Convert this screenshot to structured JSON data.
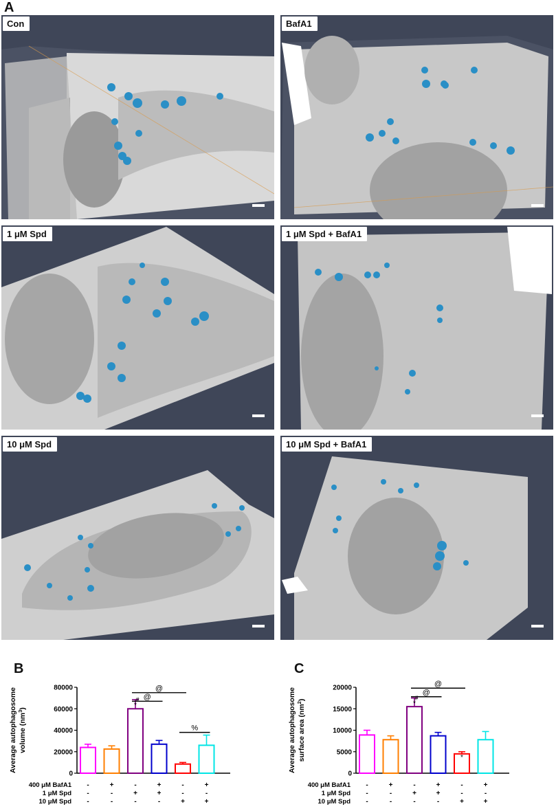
{
  "figure_letters": {
    "a": "A",
    "b": "B",
    "c": "C"
  },
  "micrographs": [
    {
      "label": "Con"
    },
    {
      "label": "BafA1"
    },
    {
      "label": "1 μM  Spd"
    },
    {
      "label": "1 μM  Spd + BafA1"
    },
    {
      "label": "10 μM  Spd"
    },
    {
      "label": "10 μM  Spd + BafA1"
    }
  ],
  "colors": {
    "autophagosome": "#2a8fc6",
    "series": [
      "#ff00ff",
      "#ff7f00",
      "#800080",
      "#0000cc",
      "#ff0000",
      "#00e5e5"
    ]
  },
  "conditions": {
    "labels": [
      "400 μM BafA1",
      "1 μM Spd",
      "10 μM Spd"
    ],
    "rows": [
      [
        "-",
        "+",
        "-",
        "+",
        "-",
        "+"
      ],
      [
        "-",
        "-",
        "+",
        "+",
        "-",
        "-"
      ],
      [
        "-",
        "-",
        "-",
        "-",
        "+",
        "+"
      ]
    ]
  },
  "chart_data": [
    {
      "type": "bar",
      "panel": "B",
      "ylabel_line1": "Average autophagosome",
      "ylabel_line2": "volume (nm",
      "ylabel_sup": "3",
      "ylabel_end": ")",
      "ylim": [
        0,
        80000
      ],
      "yticks": [
        "0",
        "20000",
        "40000",
        "60000",
        "80000"
      ],
      "ytick_values": [
        0,
        20000,
        40000,
        60000,
        80000
      ],
      "values": [
        24000,
        22500,
        60000,
        27000,
        8500,
        26000
      ],
      "errors": [
        3000,
        3000,
        8500,
        3500,
        1500,
        9500
      ],
      "marks": [
        "",
        "",
        "*",
        "",
        "",
        ""
      ],
      "marks2": [
        "",
        "",
        "#",
        "",
        "",
        ""
      ],
      "brackets": [
        {
          "from": 2,
          "to": 3,
          "label": "@",
          "y": 67000
        },
        {
          "from": 2,
          "to": 4,
          "label": "@",
          "y": 75000
        },
        {
          "from": 4,
          "to": 5,
          "label": "%",
          "y": 38000
        }
      ]
    },
    {
      "type": "bar",
      "panel": "C",
      "ylabel_line1": "Average autophagosome",
      "ylabel_line2": "surface area (nm",
      "ylabel_sup": "2",
      "ylabel_end": ")",
      "ylim": [
        0,
        20000
      ],
      "yticks": [
        "0",
        "5000",
        "10000",
        "15000",
        "20000"
      ],
      "ytick_values": [
        0,
        5000,
        10000,
        15000,
        20000
      ],
      "values": [
        8900,
        7800,
        15500,
        8700,
        4500,
        7800
      ],
      "errors": [
        1100,
        900,
        2000,
        800,
        500,
        1900
      ],
      "marks": [
        "",
        "",
        "*",
        "",
        "*",
        ""
      ],
      "marks2": [
        "",
        "",
        "#",
        "",
        "",
        ""
      ],
      "brackets": [
        {
          "from": 2,
          "to": 3,
          "label": "@",
          "y": 17800
        },
        {
          "from": 2,
          "to": 4,
          "label": "@",
          "y": 19800
        }
      ]
    }
  ]
}
